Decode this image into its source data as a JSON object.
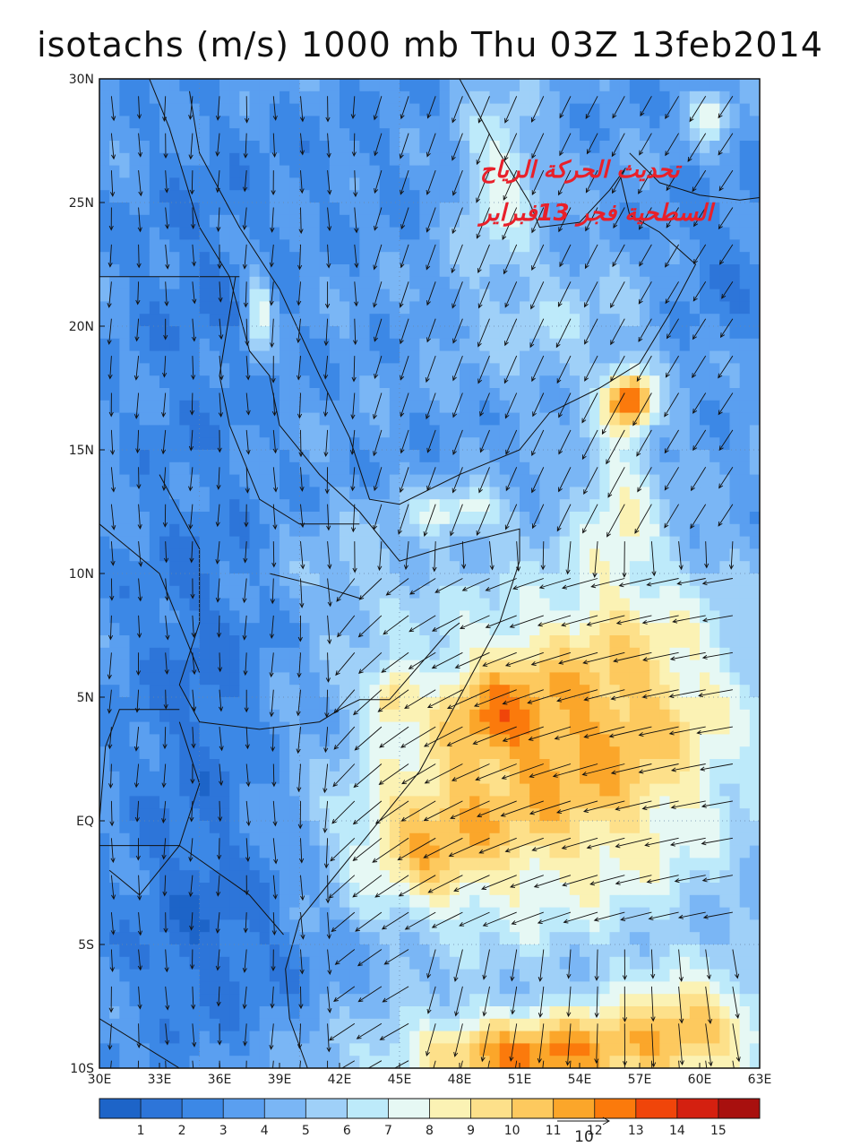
{
  "title": "isotachs (m/s) 1000 mb Thu 03Z 13feb2014",
  "annotation": {
    "line1": "تحديث الحركة الرياح",
    "line2": "السطحية فجر 13فبراير"
  },
  "axes": {
    "lon_min": 30,
    "lon_max": 63,
    "lat_min": -10,
    "lat_max": 30,
    "x_ticks": [
      {
        "value": 30,
        "label": "30E"
      },
      {
        "value": 33,
        "label": "33E"
      },
      {
        "value": 36,
        "label": "36E"
      },
      {
        "value": 39,
        "label": "39E"
      },
      {
        "value": 42,
        "label": "42E"
      },
      {
        "value": 45,
        "label": "45E"
      },
      {
        "value": 48,
        "label": "48E"
      },
      {
        "value": 51,
        "label": "51E"
      },
      {
        "value": 54,
        "label": "54E"
      },
      {
        "value": 57,
        "label": "57E"
      },
      {
        "value": 60,
        "label": "60E"
      },
      {
        "value": 63,
        "label": "63E"
      }
    ],
    "y_ticks": [
      {
        "value": 30,
        "label": "30N"
      },
      {
        "value": 25,
        "label": "25N"
      },
      {
        "value": 20,
        "label": "20N"
      },
      {
        "value": 15,
        "label": "15N"
      },
      {
        "value": 10,
        "label": "10N"
      },
      {
        "value": 5,
        "label": "5N"
      },
      {
        "value": 0,
        "label": "EQ"
      },
      {
        "value": -5,
        "label": "5S"
      },
      {
        "value": -10,
        "label": "10S"
      }
    ]
  },
  "colorbar": {
    "colors": [
      "#1d64c8",
      "#2d75d9",
      "#3c88e6",
      "#5a9ff0",
      "#7ab6f5",
      "#9fd0f8",
      "#bdeafa",
      "#e6f8f4",
      "#fbf2b4",
      "#fde08a",
      "#fdc95e",
      "#fba62a",
      "#fb7a0c",
      "#f0450a",
      "#d42010",
      "#a8100e"
    ],
    "labels": [
      "1",
      "2",
      "3",
      "4",
      "5",
      "6",
      "7",
      "8",
      "9",
      "10",
      "11",
      "12",
      "13",
      "14",
      "15"
    ]
  },
  "reference_vector": {
    "label": "10"
  },
  "speed_field": {
    "base": 3.5,
    "blobs": [
      {
        "lon": 53.0,
        "lat": 2.0,
        "rx": 9.0,
        "ry": 7.0,
        "amp": 6.5
      },
      {
        "lon": 49.5,
        "lat": 4.5,
        "rx": 2.5,
        "ry": 2.0,
        "amp": 3.0
      },
      {
        "lon": 46.0,
        "lat": -1.0,
        "rx": 4.0,
        "ry": 3.0,
        "amp": 4.0
      },
      {
        "lon": 57.0,
        "lat": 6.0,
        "rx": 6.0,
        "ry": 5.0,
        "amp": 2.5
      },
      {
        "lon": 52.0,
        "lat": -9.5,
        "rx": 8.0,
        "ry": 1.8,
        "amp": 8.0
      },
      {
        "lon": 60.0,
        "lat": -8.0,
        "rx": 4.0,
        "ry": 2.0,
        "amp": 5.0
      },
      {
        "lon": 56.5,
        "lat": 17.0,
        "rx": 1.2,
        "ry": 1.2,
        "amp": 8.5
      },
      {
        "lon": 56.0,
        "lat": 13.0,
        "rx": 2.0,
        "ry": 3.5,
        "amp": 3.5
      },
      {
        "lon": 48.0,
        "lat": 12.5,
        "rx": 2.5,
        "ry": 0.9,
        "amp": 3.5
      },
      {
        "lon": 44.5,
        "lat": 5.0,
        "rx": 1.2,
        "ry": 1.2,
        "amp": 4.5
      },
      {
        "lon": 50.0,
        "lat": 26.0,
        "rx": 2.0,
        "ry": 3.5,
        "amp": 4.0
      },
      {
        "lon": 60.5,
        "lat": 28.5,
        "rx": 1.0,
        "ry": 1.0,
        "amp": 4.0
      },
      {
        "lon": 38.0,
        "lat": 20.5,
        "rx": 0.6,
        "ry": 1.8,
        "amp": 4.5
      },
      {
        "lon": 43.0,
        "lat": 10.0,
        "rx": 4.0,
        "ry": 2.5,
        "amp": 1.5
      },
      {
        "lon": 53.0,
        "lat": 20.0,
        "rx": 5.0,
        "ry": 3.0,
        "amp": 2.0
      },
      {
        "lon": 35.0,
        "lat": 5.0,
        "rx": 4.0,
        "ry": 10.0,
        "amp": -1.8
      },
      {
        "lon": 36.0,
        "lat": -5.0,
        "rx": 5.0,
        "ry": 4.0,
        "amp": -1.5
      },
      {
        "lon": 35.0,
        "lat": 22.0,
        "rx": 4.0,
        "ry": 6.0,
        "amp": -1.2
      },
      {
        "lon": 61.0,
        "lat": 22.0,
        "rx": 2.5,
        "ry": 3.0,
        "amp": -1.3
      },
      {
        "lon": 42.0,
        "lat": 27.0,
        "rx": 6.0,
        "ry": 3.0,
        "amp": -0.5
      }
    ]
  }
}
